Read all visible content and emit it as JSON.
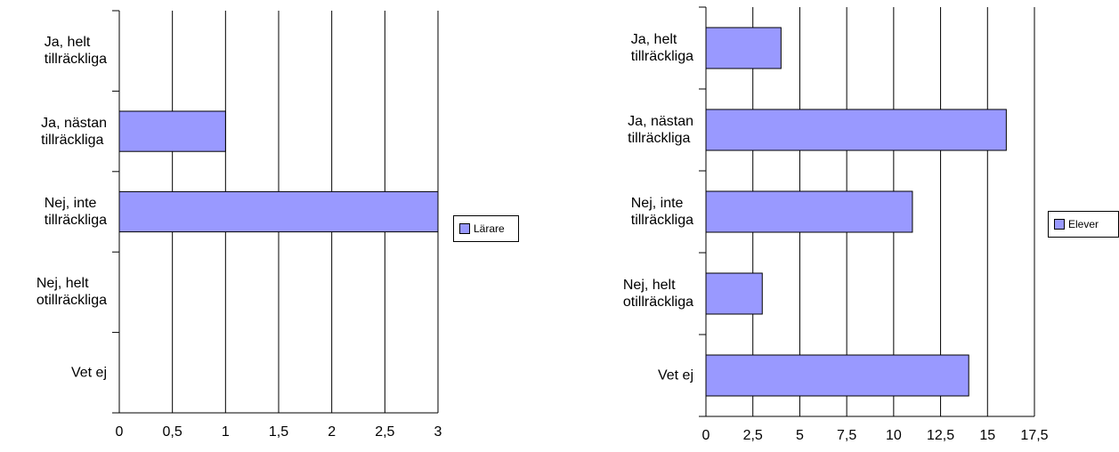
{
  "chart_data": [
    {
      "type": "bar",
      "orientation": "horizontal",
      "categories": [
        "Ja, helt\ntillräckliga",
        "Ja, nästan\ntillräckliga",
        "Nej, inte\ntillräckliga",
        "Nej, helt\notillräckliga",
        "Vet ej"
      ],
      "series": [
        {
          "name": "Lärare",
          "color": "#9999ff",
          "values": [
            0,
            1,
            3,
            0,
            0
          ]
        }
      ],
      "xlim": [
        0,
        3
      ],
      "xticks": [
        0,
        {
          "value": 0.5,
          "label": "0,5"
        },
        1,
        {
          "value": 1.5,
          "label": "1,5"
        },
        2,
        {
          "value": 2.5,
          "label": "2,5"
        },
        3
      ],
      "grid": true,
      "legend": "right"
    },
    {
      "type": "bar",
      "orientation": "horizontal",
      "categories": [
        "Ja, helt\ntillräckliga",
        "Ja, nästan\ntillräckliga",
        "Nej, inte\ntillräckliga",
        "Nej, helt\notillräckliga",
        "Vet ej"
      ],
      "series": [
        {
          "name": "Elever",
          "color": "#9999ff",
          "values": [
            4,
            16,
            11,
            3,
            14
          ]
        }
      ],
      "xlim": [
        0,
        17.5
      ],
      "xticks": [
        0,
        {
          "value": 2.5,
          "label": "2,5"
        },
        5,
        {
          "value": 7.5,
          "label": "7,5"
        },
        10,
        {
          "value": 12.5,
          "label": "12,5"
        },
        15,
        {
          "value": 17.5,
          "label": "17,5"
        }
      ],
      "grid": true,
      "legend": "right"
    }
  ]
}
